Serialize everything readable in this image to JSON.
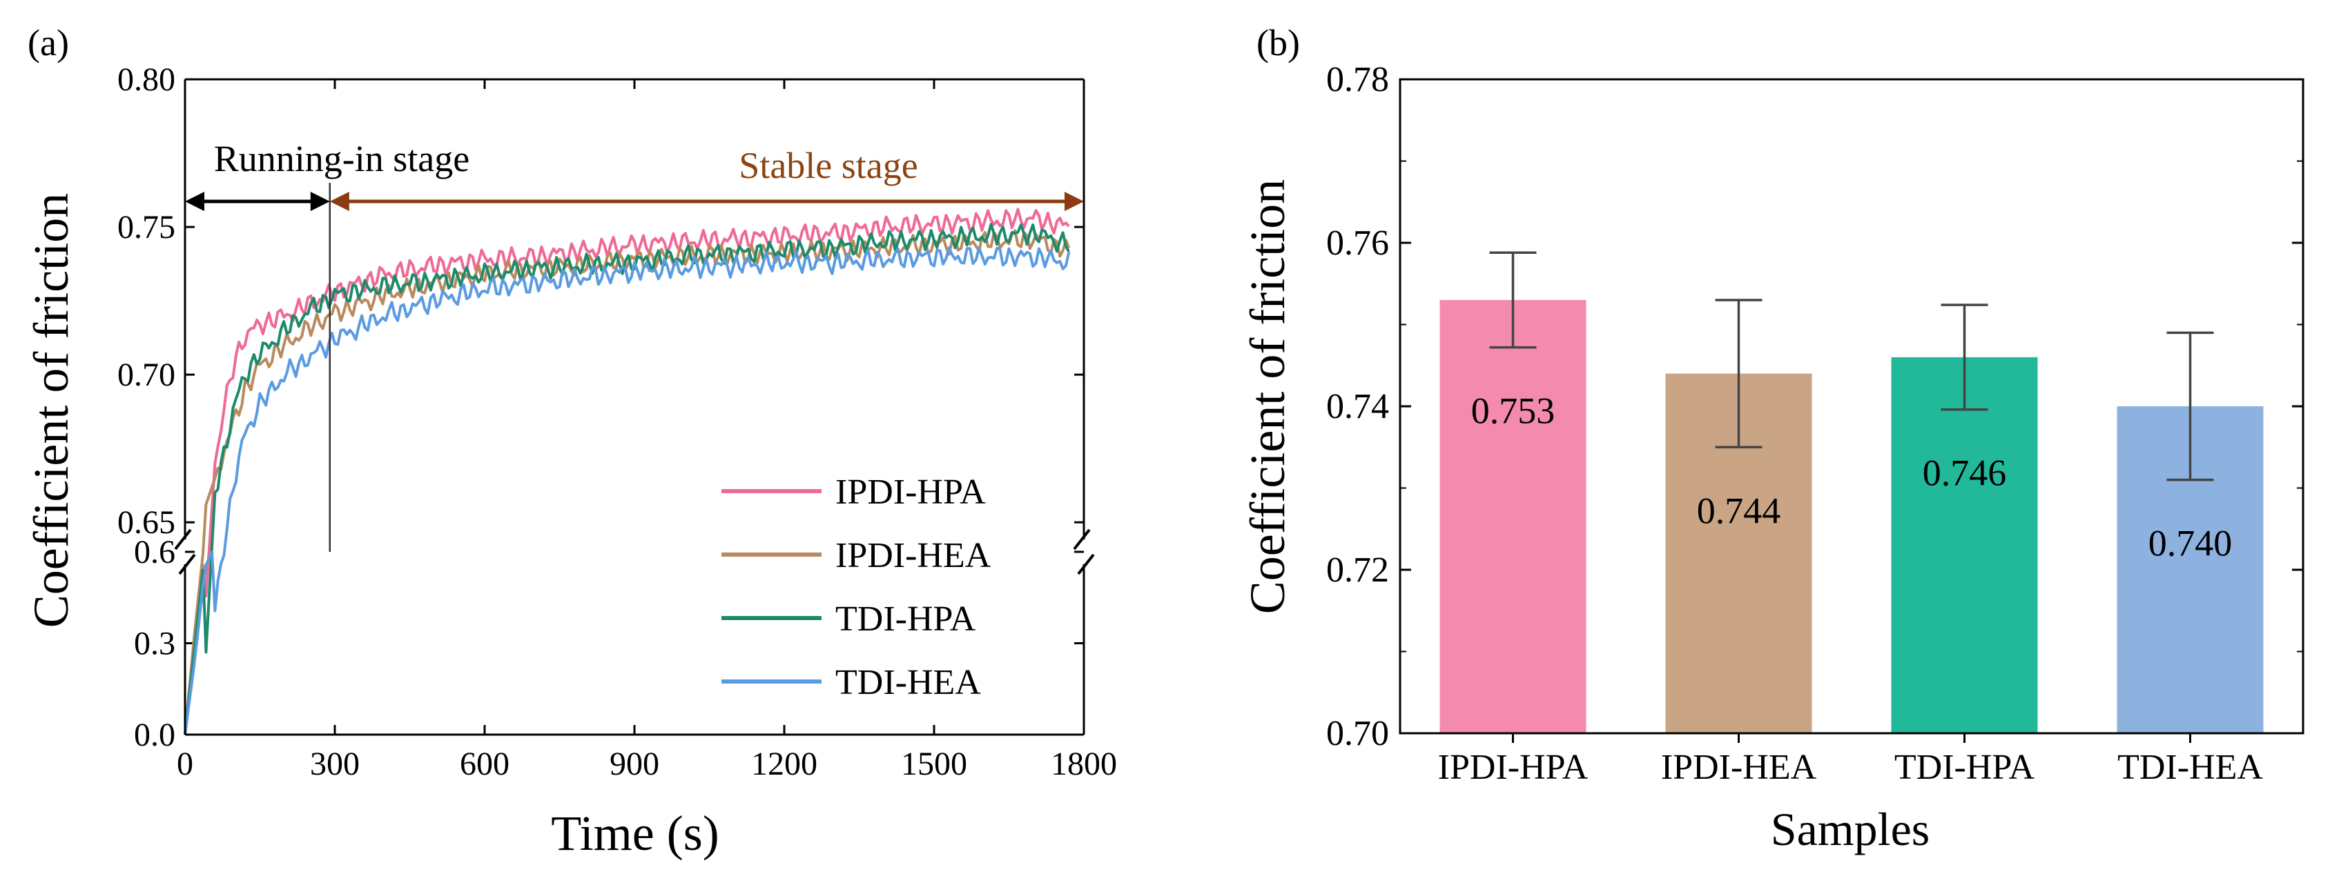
{
  "chart_data": [
    {
      "panel_label": "(a)",
      "type": "line",
      "xlabel": "Time (s)",
      "ylabel": "Coefficient of friction",
      "xlim": [
        0,
        1800
      ],
      "xticks": [
        "0",
        "300",
        "600",
        "900",
        "1200",
        "1500",
        "1800"
      ],
      "ylim_lower": [
        0.0,
        0.6
      ],
      "yticks_lower": [
        "0.0",
        "0.3",
        "0.6"
      ],
      "ylim_upper": [
        0.64,
        0.8
      ],
      "yticks_upper": [
        "0.65",
        "0.70",
        "0.75",
        "0.80"
      ],
      "axis_break": true,
      "annotations": {
        "running_in": {
          "label": "Running-in stage",
          "x_start": 0,
          "x_end": 290
        },
        "stable": {
          "label": "Stable stage",
          "x_start": 290,
          "x_end": 1800
        },
        "divider_x": 290
      },
      "series": [
        {
          "name": "IPDI-HPA",
          "color": "#EE6A97",
          "x": [
            0,
            20,
            40,
            60,
            80,
            100,
            120,
            150,
            200,
            250,
            300,
            400,
            500,
            600,
            700,
            800,
            900,
            1000,
            1100,
            1200,
            1300,
            1400,
            1500,
            1600,
            1700,
            1770
          ],
          "y": [
            0.0,
            0.3,
            0.62,
            0.67,
            0.69,
            0.705,
            0.713,
            0.717,
            0.72,
            0.724,
            0.728,
            0.734,
            0.737,
            0.739,
            0.74,
            0.742,
            0.744,
            0.745,
            0.746,
            0.747,
            0.748,
            0.75,
            0.751,
            0.752,
            0.753,
            0.75
          ]
        },
        {
          "name": "IPDI-HEA",
          "color": "#B98A5E",
          "x": [
            0,
            20,
            40,
            60,
            80,
            100,
            120,
            150,
            200,
            250,
            300,
            400,
            500,
            600,
            700,
            800,
            900,
            1000,
            1100,
            1200,
            1300,
            1400,
            1500,
            1600,
            1700,
            1770
          ],
          "y": [
            0.0,
            0.35,
            0.655,
            0.665,
            0.675,
            0.685,
            0.695,
            0.703,
            0.71,
            0.716,
            0.721,
            0.727,
            0.731,
            0.734,
            0.736,
            0.737,
            0.739,
            0.74,
            0.741,
            0.741,
            0.742,
            0.743,
            0.744,
            0.745,
            0.746,
            0.742
          ]
        },
        {
          "name": "TDI-HPA",
          "color": "#1E8A6C",
          "x": [
            0,
            20,
            40,
            60,
            80,
            100,
            120,
            150,
            200,
            250,
            300,
            400,
            500,
            600,
            700,
            800,
            900,
            1000,
            1100,
            1200,
            1300,
            1400,
            1500,
            1600,
            1700,
            1770
          ],
          "y": [
            0.0,
            0.3,
            0.6,
            0.66,
            0.675,
            0.69,
            0.7,
            0.707,
            0.715,
            0.722,
            0.727,
            0.73,
            0.732,
            0.734,
            0.736,
            0.737,
            0.738,
            0.74,
            0.741,
            0.742,
            0.743,
            0.745,
            0.746,
            0.747,
            0.748,
            0.744
          ]
        },
        {
          "name": "TDI-HEA",
          "color": "#5B9BE0",
          "x": [
            0,
            20,
            40,
            60,
            80,
            100,
            120,
            150,
            200,
            250,
            300,
            400,
            500,
            600,
            700,
            800,
            900,
            1000,
            1100,
            1200,
            1300,
            1400,
            1500,
            1600,
            1700,
            1770
          ],
          "y": [
            0.0,
            0.25,
            0.55,
            0.62,
            0.645,
            0.665,
            0.68,
            0.69,
            0.7,
            0.706,
            0.712,
            0.72,
            0.725,
            0.729,
            0.731,
            0.733,
            0.735,
            0.736,
            0.737,
            0.738,
            0.738,
            0.739,
            0.74,
            0.74,
            0.74,
            0.738
          ]
        }
      ]
    },
    {
      "panel_label": "(b)",
      "type": "bar",
      "xlabel": "Samples",
      "ylabel": "Coefficient of friction",
      "ylim": [
        0.7,
        0.78
      ],
      "yticks": [
        "0.70",
        "0.72",
        "0.74",
        "0.76",
        "0.78"
      ],
      "categories": [
        "IPDI-HPA",
        "IPDI-HEA",
        "TDI-HPA",
        "TDI-HEA"
      ],
      "values": [
        0.753,
        0.744,
        0.746,
        0.74
      ],
      "errors": [
        0.0058,
        0.009,
        0.0064,
        0.009
      ],
      "value_labels": [
        "0.753",
        "0.744",
        "0.746",
        "0.740"
      ],
      "colors": [
        "#F48BAF",
        "#C9A585",
        "#21B99A",
        "#8DB2E0"
      ]
    }
  ]
}
